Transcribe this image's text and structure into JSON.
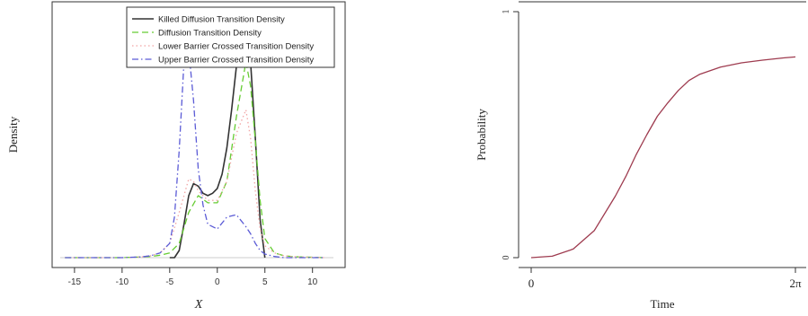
{
  "chart_data": [
    {
      "type": "line",
      "xlabel": "X",
      "ylabel": "Density",
      "xlim": [
        -16.5,
        12.2
      ],
      "ylim": [
        0,
        1.05
      ],
      "x_ticks": [
        -15,
        -10,
        -5,
        0,
        5,
        10
      ],
      "x_tick_labels": [
        "-15",
        "-10",
        "-5",
        "0",
        "5",
        "10"
      ],
      "legend_position": "top-right",
      "series": [
        {
          "name": "Killed Diffusion Transition Density",
          "color": "#333333",
          "dash": "solid",
          "x": [
            -5.0,
            -4.5,
            -4.0,
            -3.5,
            -3.0,
            -2.5,
            -2.0,
            -1.5,
            -1.0,
            -0.5,
            0.0,
            0.5,
            1.0,
            1.5,
            2.0,
            2.5,
            3.0,
            3.5,
            4.0,
            4.5,
            5.0
          ],
          "y": [
            0.0,
            0.0,
            0.03,
            0.14,
            0.26,
            0.31,
            0.3,
            0.27,
            0.26,
            0.27,
            0.29,
            0.35,
            0.46,
            0.62,
            0.8,
            0.93,
            0.97,
            0.82,
            0.5,
            0.16,
            0.0
          ]
        },
        {
          "name": "Diffusion Transition Density",
          "color": "#66cc33",
          "dash": "long-dash",
          "x": [
            -16.0,
            -10.0,
            -8.0,
            -7.0,
            -6.0,
            -5.0,
            -4.0,
            -3.0,
            -2.0,
            -1.0,
            0.0,
            1.0,
            2.0,
            3.0,
            3.5,
            4.0,
            4.5,
            5.0,
            6.0,
            7.0,
            8.0,
            11.2
          ],
          "y": [
            0.0,
            0.0,
            0.003,
            0.005,
            0.01,
            0.02,
            0.06,
            0.19,
            0.26,
            0.23,
            0.23,
            0.32,
            0.59,
            0.82,
            0.72,
            0.49,
            0.24,
            0.08,
            0.02,
            0.008,
            0.004,
            0.0
          ]
        },
        {
          "name": "Lower Barrier Crossed Transition Density",
          "color": "#f2a4a4",
          "dash": "dotted",
          "x": [
            -16.0,
            -10.0,
            -8.0,
            -7.0,
            -6.0,
            -5.0,
            -4.0,
            -3.0,
            -2.5,
            -2.0,
            -1.0,
            0.0,
            1.0,
            2.0,
            3.0,
            3.5,
            4.0,
            4.5,
            5.0,
            6.0,
            7.0,
            8.0,
            11.2
          ],
          "y": [
            0.0,
            0.0,
            0.003,
            0.008,
            0.02,
            0.06,
            0.19,
            0.33,
            0.32,
            0.28,
            0.24,
            0.24,
            0.32,
            0.52,
            0.62,
            0.5,
            0.28,
            0.12,
            0.05,
            0.02,
            0.008,
            0.004,
            0.0
          ]
        },
        {
          "name": "Upper Barrier Crossed Transition Density",
          "color": "#5b5bd6",
          "dash": "dash-dot",
          "x": [
            -16.0,
            -10.0,
            -8.0,
            -7.0,
            -6.0,
            -5.0,
            -4.5,
            -4.0,
            -3.5,
            -3.0,
            -2.5,
            -2.0,
            -1.5,
            -1.0,
            0.0,
            1.0,
            2.0,
            3.0,
            3.5,
            4.0,
            4.5,
            5.0,
            6.0,
            7.0,
            8.0,
            11.2
          ],
          "y": [
            0.0,
            0.0,
            0.003,
            0.008,
            0.02,
            0.06,
            0.17,
            0.45,
            0.82,
            0.87,
            0.66,
            0.37,
            0.22,
            0.14,
            0.12,
            0.17,
            0.18,
            0.13,
            0.1,
            0.06,
            0.03,
            0.015,
            0.005,
            0.0,
            0.0,
            0.0
          ]
        }
      ]
    },
    {
      "type": "line",
      "xlabel": "Time",
      "ylabel": "Probability",
      "xlim": [
        0,
        6.2832
      ],
      "ylim": [
        0,
        1
      ],
      "x_ticks": [
        0,
        6.2832
      ],
      "x_tick_labels": [
        "0",
        "2π"
      ],
      "y_ticks": [
        0,
        1
      ],
      "y_tick_labels": [
        "0",
        "1"
      ],
      "series": [
        {
          "color": "#9e3b4f",
          "dash": "solid",
          "x": [
            0.0,
            0.5,
            1.0,
            1.5,
            2.0,
            2.25,
            2.5,
            2.75,
            3.0,
            3.25,
            3.5,
            3.75,
            4.0,
            4.5,
            5.0,
            5.5,
            6.0,
            6.2832
          ],
          "y": [
            0.0,
            0.006,
            0.035,
            0.11,
            0.25,
            0.33,
            0.42,
            0.5,
            0.575,
            0.63,
            0.68,
            0.72,
            0.745,
            0.775,
            0.792,
            0.803,
            0.812,
            0.816
          ]
        }
      ]
    }
  ]
}
